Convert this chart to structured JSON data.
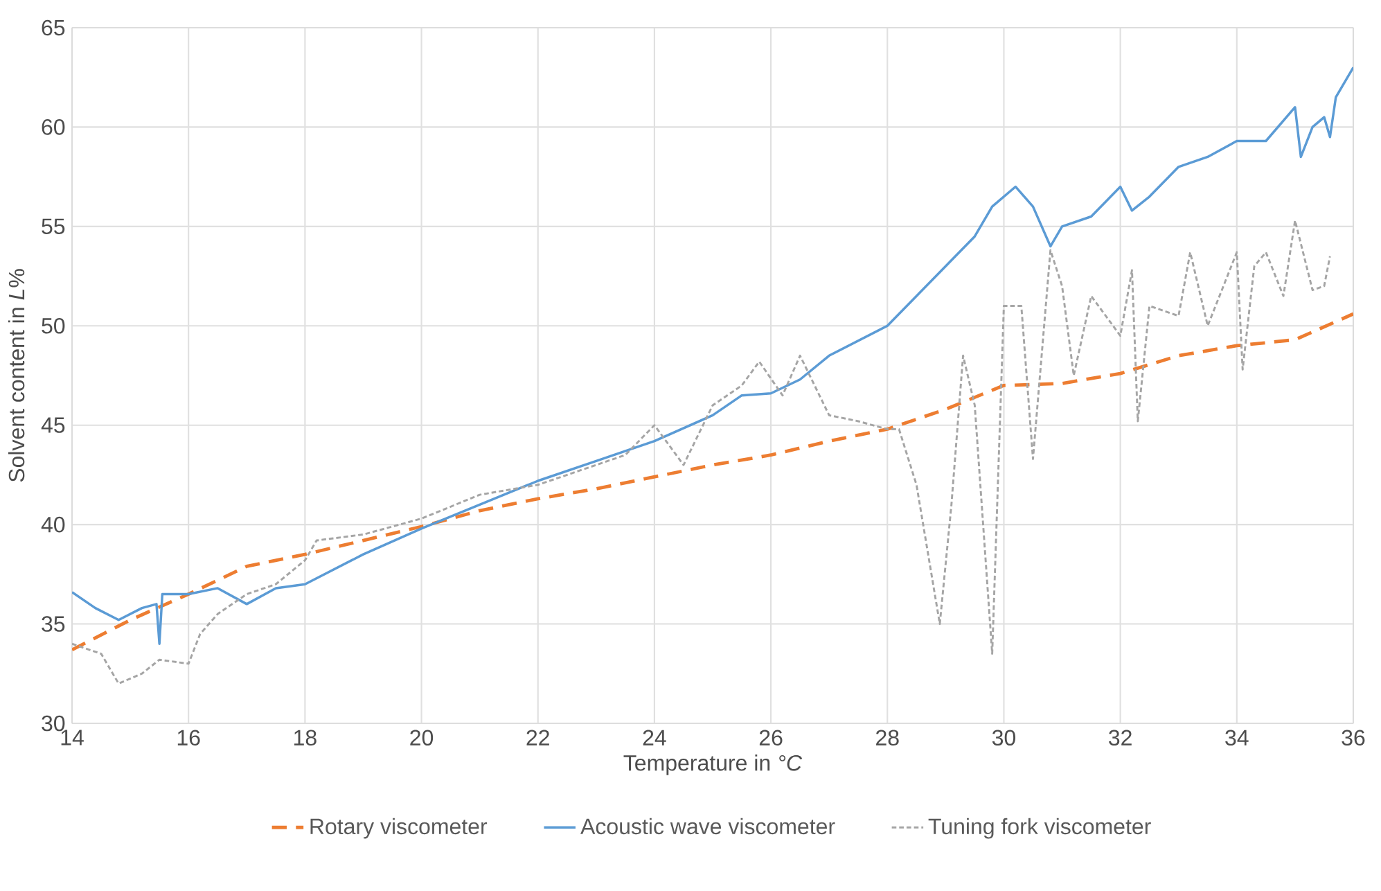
{
  "chart_data": {
    "type": "line",
    "xlabel": "Temperature in *°C*",
    "ylabel": "Solvent content in *L*%",
    "xlim": [
      14,
      36
    ],
    "xticks": [
      14,
      16,
      18,
      20,
      22,
      24,
      26,
      28,
      30,
      32,
      34,
      36
    ],
    "ylim": [
      30,
      65
    ],
    "yticks": [
      30,
      35,
      40,
      45,
      50,
      55,
      60,
      65
    ],
    "grid": true,
    "legend": "bottom",
    "marker": "none",
    "series": [
      {
        "name": "Rotary viscometer",
        "color": "#ed7d31",
        "line_style": "dashed",
        "x": [
          14,
          15,
          16,
          17,
          18,
          19,
          20,
          21,
          22,
          23,
          24,
          25,
          26,
          27,
          28,
          29,
          30,
          31,
          32,
          33,
          34,
          35,
          36
        ],
        "values": [
          33.7,
          35.2,
          36.5,
          37.9,
          38.5,
          39.2,
          39.9,
          40.7,
          41.3,
          41.8,
          42.4,
          43.0,
          43.5,
          44.2,
          44.8,
          45.8,
          47.0,
          47.1,
          47.6,
          48.5,
          49.0,
          49.3,
          50.6
        ]
      },
      {
        "name": "Acoustic wave viscometer",
        "color": "#5b9bd5",
        "line_style": "solid",
        "x": [
          14,
          14.4,
          14.8,
          15.2,
          15.45,
          15.5,
          15.55,
          16,
          16.5,
          17,
          17.5,
          18,
          19,
          20,
          21,
          22,
          23,
          24,
          25,
          25.5,
          26,
          26.5,
          27,
          28,
          28.5,
          29,
          29.5,
          29.8,
          30.2,
          30.5,
          30.8,
          31,
          31.5,
          32,
          32.2,
          32.5,
          33,
          33.5,
          34,
          34.5,
          35,
          35.1,
          35.3,
          35.5,
          35.6,
          35.7,
          36
        ],
        "values": [
          36.6,
          35.8,
          35.2,
          35.8,
          36.0,
          34.0,
          36.5,
          36.5,
          36.8,
          36.0,
          36.8,
          37.0,
          38.5,
          39.8,
          41.0,
          42.2,
          43.2,
          44.2,
          45.5,
          46.5,
          46.6,
          47.3,
          48.5,
          50.0,
          51.5,
          53.0,
          54.5,
          56.0,
          57.0,
          56.0,
          54.0,
          55.0,
          55.5,
          57.0,
          55.8,
          56.5,
          58.0,
          58.5,
          59.3,
          59.3,
          61.0,
          58.5,
          60.0,
          60.5,
          59.5,
          61.5,
          63.0
        ]
      },
      {
        "name": "Tuning fork viscometer",
        "color": "#a5a5a5",
        "line_style": "dotted",
        "x": [
          14,
          14.5,
          14.8,
          15.2,
          15.5,
          16,
          16.2,
          16.5,
          17,
          17.5,
          18,
          18.2,
          19,
          20,
          21,
          22,
          23,
          23.5,
          24,
          24.5,
          25,
          25.5,
          25.8,
          26.2,
          26.5,
          27,
          27.5,
          28,
          28.2,
          28.5,
          28.9,
          29.1,
          29.3,
          29.5,
          29.8,
          30,
          30.3,
          30.5,
          30.8,
          31,
          31.2,
          31.5,
          32,
          32.2,
          32.3,
          32.5,
          33,
          33.2,
          33.5,
          34,
          34.1,
          34.3,
          34.5,
          34.8,
          35,
          35.3,
          35.5,
          35.6
        ],
        "values": [
          34.0,
          33.5,
          32.0,
          32.5,
          33.2,
          33.0,
          34.5,
          35.5,
          36.5,
          37.0,
          38.2,
          39.2,
          39.5,
          40.3,
          41.5,
          42.0,
          43.0,
          43.5,
          45.0,
          43.0,
          46.0,
          47.0,
          48.2,
          46.5,
          48.5,
          45.5,
          45.2,
          44.8,
          44.8,
          42.0,
          35.0,
          41.0,
          48.5,
          46.0,
          33.5,
          51.0,
          51.0,
          43.3,
          53.8,
          52.0,
          47.5,
          51.5,
          49.5,
          52.8,
          45.2,
          51.0,
          50.5,
          53.7,
          50.0,
          53.7,
          47.8,
          53.0,
          53.7,
          51.5,
          55.3,
          51.8,
          52.0,
          53.5
        ]
      }
    ]
  }
}
